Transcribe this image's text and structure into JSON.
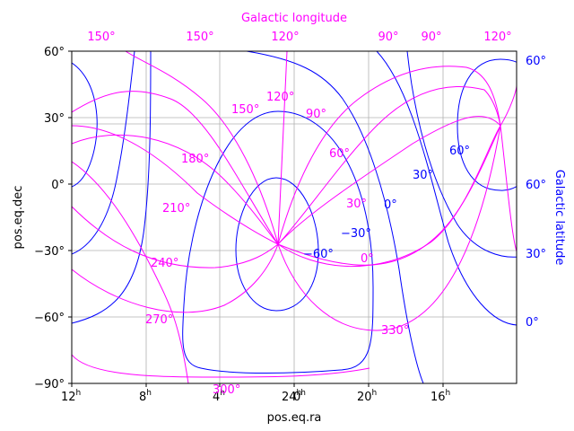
{
  "chart_data": {
    "type": "line",
    "title": "",
    "xlabel": "pos.eq.ra",
    "ylabel": "pos.eq.dec",
    "top_axis_label": "Galactic longitude",
    "right_axis_label": "Galactic latitude",
    "grid": true,
    "colors": {
      "frame": "#000000",
      "galactic_longitude": "#ff00ff",
      "galactic_latitude": "#0000ff",
      "grid": "#b0b0b0"
    },
    "x_ticks": [
      {
        "base": "12",
        "sup": "h"
      },
      {
        "base": "8",
        "sup": "h"
      },
      {
        "base": "4",
        "sup": "h"
      },
      {
        "base": "0",
        "sup": "h"
      },
      {
        "base": "24",
        "sup": "h"
      },
      {
        "base": "20",
        "sup": "h"
      },
      {
        "base": "16",
        "sup": "h"
      }
    ],
    "y_ticks": [
      "60°",
      "30°",
      "0°",
      "−30°",
      "−60°",
      "−90°"
    ],
    "top_ticks": [
      "150°",
      "150°",
      "120°",
      "90°",
      "90°",
      "120°"
    ],
    "right_ticks": [
      "60°",
      "60°",
      "30°",
      "0°"
    ],
    "inline_longitude_labels": [
      "120°",
      "150°",
      "90°",
      "180°",
      "60°",
      "210°",
      "30°",
      "240°",
      "0°",
      "270°",
      "330°",
      "300°"
    ],
    "inline_latitude_labels": [
      "60°",
      "30°",
      "0°",
      "−30°",
      "−60°"
    ]
  }
}
